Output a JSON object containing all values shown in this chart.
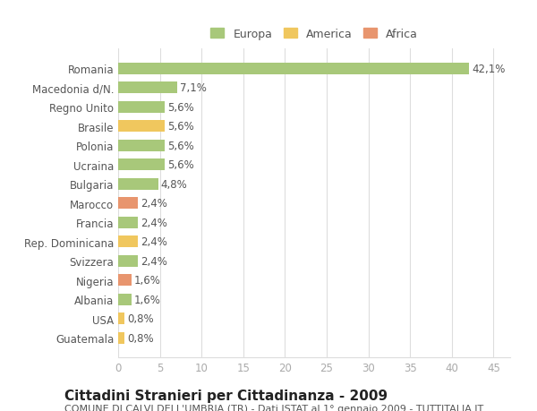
{
  "categories": [
    "Guatemala",
    "USA",
    "Albania",
    "Nigeria",
    "Svizzera",
    "Rep. Dominicana",
    "Francia",
    "Marocco",
    "Bulgaria",
    "Ucraina",
    "Polonia",
    "Brasile",
    "Regno Unito",
    "Macedonia d/N.",
    "Romania"
  ],
  "values": [
    0.8,
    0.8,
    1.6,
    1.6,
    2.4,
    2.4,
    2.4,
    2.4,
    4.8,
    5.6,
    5.6,
    5.6,
    5.6,
    7.1,
    42.1
  ],
  "colors": [
    "#f0c75e",
    "#f0c75e",
    "#a8c87a",
    "#e8956e",
    "#a8c87a",
    "#f0c75e",
    "#a8c87a",
    "#e8956e",
    "#a8c87a",
    "#a8c87a",
    "#a8c87a",
    "#f0c75e",
    "#a8c87a",
    "#a8c87a",
    "#a8c87a"
  ],
  "labels": [
    "0,8%",
    "0,8%",
    "1,6%",
    "1,6%",
    "2,4%",
    "2,4%",
    "2,4%",
    "2,4%",
    "4,8%",
    "5,6%",
    "5,6%",
    "5,6%",
    "5,6%",
    "7,1%",
    "42,1%"
  ],
  "legend": [
    {
      "label": "Europa",
      "color": "#a8c87a"
    },
    {
      "label": "America",
      "color": "#f0c75e"
    },
    {
      "label": "Africa",
      "color": "#e8956e"
    }
  ],
  "xlim": [
    0,
    47
  ],
  "xticks": [
    0,
    5,
    10,
    15,
    20,
    25,
    30,
    35,
    40,
    45
  ],
  "title": "Cittadini Stranieri per Cittadinanza - 2009",
  "subtitle": "COMUNE DI CALVI DELL'UMBRIA (TR) - Dati ISTAT al 1° gennaio 2009 - TUTTITALIA.IT",
  "background_color": "#ffffff",
  "grid_color": "#dddddd",
  "bar_height": 0.6,
  "title_fontsize": 11,
  "subtitle_fontsize": 8,
  "tick_fontsize": 8.5,
  "label_fontsize": 8.5
}
